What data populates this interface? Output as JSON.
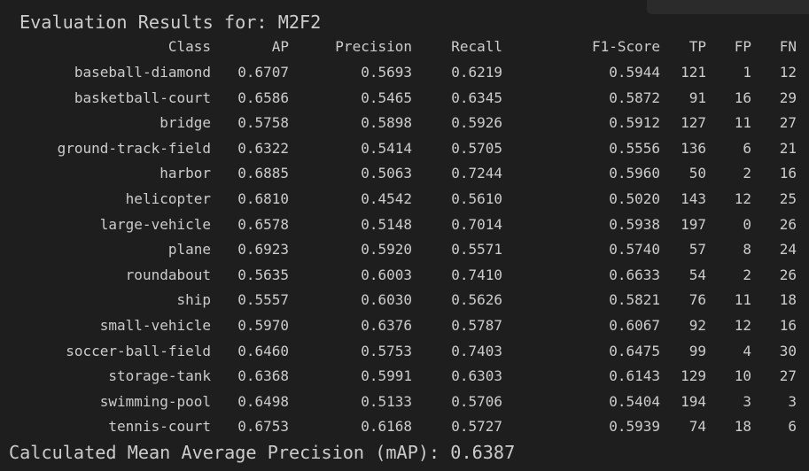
{
  "title": "Evaluation Results for: M2F2",
  "headers": {
    "class": "Class",
    "ap": "AP",
    "precision": "Precision",
    "recall": "Recall",
    "f1": "F1-Score",
    "tp": "TP",
    "fp": "FP",
    "fn": "FN"
  },
  "rows": [
    {
      "class": "baseball-diamond",
      "ap": "0.6707",
      "precision": "0.5693",
      "recall": "0.6219",
      "f1": "0.5944",
      "tp": "121",
      "fp": "1",
      "fn": "12"
    },
    {
      "class": "basketball-court",
      "ap": "0.6586",
      "precision": "0.5465",
      "recall": "0.6345",
      "f1": "0.5872",
      "tp": "91",
      "fp": "16",
      "fn": "29"
    },
    {
      "class": "bridge",
      "ap": "0.5758",
      "precision": "0.5898",
      "recall": "0.5926",
      "f1": "0.5912",
      "tp": "127",
      "fp": "11",
      "fn": "27"
    },
    {
      "class": "ground-track-field",
      "ap": "0.6322",
      "precision": "0.5414",
      "recall": "0.5705",
      "f1": "0.5556",
      "tp": "136",
      "fp": "6",
      "fn": "21"
    },
    {
      "class": "harbor",
      "ap": "0.6885",
      "precision": "0.5063",
      "recall": "0.7244",
      "f1": "0.5960",
      "tp": "50",
      "fp": "2",
      "fn": "16"
    },
    {
      "class": "helicopter",
      "ap": "0.6810",
      "precision": "0.4542",
      "recall": "0.5610",
      "f1": "0.5020",
      "tp": "143",
      "fp": "12",
      "fn": "25"
    },
    {
      "class": "large-vehicle",
      "ap": "0.6578",
      "precision": "0.5148",
      "recall": "0.7014",
      "f1": "0.5938",
      "tp": "197",
      "fp": "0",
      "fn": "26"
    },
    {
      "class": "plane",
      "ap": "0.6923",
      "precision": "0.5920",
      "recall": "0.5571",
      "f1": "0.5740",
      "tp": "57",
      "fp": "8",
      "fn": "24"
    },
    {
      "class": "roundabout",
      "ap": "0.5635",
      "precision": "0.6003",
      "recall": "0.7410",
      "f1": "0.6633",
      "tp": "54",
      "fp": "2",
      "fn": "26"
    },
    {
      "class": "ship",
      "ap": "0.5557",
      "precision": "0.6030",
      "recall": "0.5626",
      "f1": "0.5821",
      "tp": "76",
      "fp": "11",
      "fn": "18"
    },
    {
      "class": "small-vehicle",
      "ap": "0.5970",
      "precision": "0.6376",
      "recall": "0.5787",
      "f1": "0.6067",
      "tp": "92",
      "fp": "12",
      "fn": "16"
    },
    {
      "class": "soccer-ball-field",
      "ap": "0.6460",
      "precision": "0.5753",
      "recall": "0.7403",
      "f1": "0.6475",
      "tp": "99",
      "fp": "4",
      "fn": "30"
    },
    {
      "class": "storage-tank",
      "ap": "0.6368",
      "precision": "0.5991",
      "recall": "0.6303",
      "f1": "0.6143",
      "tp": "129",
      "fp": "10",
      "fn": "27"
    },
    {
      "class": "swimming-pool",
      "ap": "0.6498",
      "precision": "0.5133",
      "recall": "0.5706",
      "f1": "0.5404",
      "tp": "194",
      "fp": "3",
      "fn": "3"
    },
    {
      "class": "tennis-court",
      "ap": "0.6753",
      "precision": "0.6168",
      "recall": "0.5727",
      "f1": "0.5939",
      "tp": "74",
      "fp": "18",
      "fn": "6"
    }
  ],
  "footer": "Calculated Mean Average Precision (mAP): 0.6387",
  "colors": {
    "background": "#1e1e1e",
    "text": "#cccccc"
  }
}
